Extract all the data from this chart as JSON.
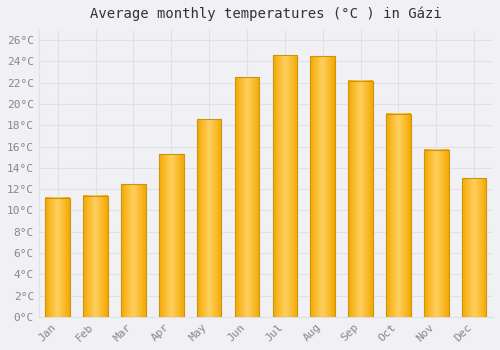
{
  "months": [
    "Jan",
    "Feb",
    "Mar",
    "Apr",
    "May",
    "Jun",
    "Jul",
    "Aug",
    "Sep",
    "Oct",
    "Nov",
    "Dec"
  ],
  "values": [
    11.2,
    11.4,
    12.5,
    15.3,
    18.6,
    22.5,
    24.6,
    24.5,
    22.2,
    19.1,
    15.7,
    13.0
  ],
  "bar_color_center": "#FFD060",
  "bar_color_edge": "#F5A800",
  "bar_border_color": "#C8960A",
  "background_color": "#F0F0F5",
  "grid_color": "#E0E0E8",
  "title": "Average monthly temperatures (°C ) in Gázi",
  "title_fontsize": 10,
  "tick_label_color": "#888888",
  "tick_fontsize": 8,
  "ylim": [
    0,
    27
  ],
  "yticks": [
    0,
    2,
    4,
    6,
    8,
    10,
    12,
    14,
    16,
    18,
    20,
    22,
    24,
    26
  ],
  "ytick_labels": [
    "0°C",
    "2°C",
    "4°C",
    "6°C",
    "8°C",
    "10°C",
    "12°C",
    "14°C",
    "16°C",
    "18°C",
    "20°C",
    "22°C",
    "24°C",
    "26°C"
  ]
}
